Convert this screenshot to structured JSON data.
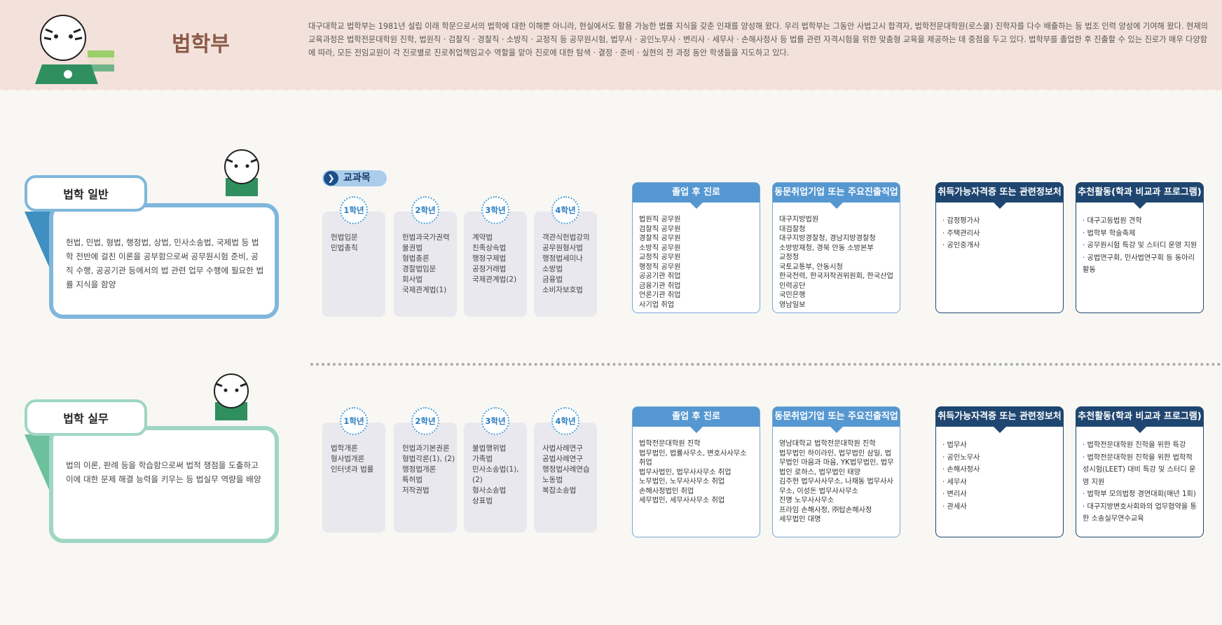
{
  "header": {
    "title": "법학부",
    "intro": "대구대학교 법학부는 1981년 설립 이래 학문으로서의 법학에 대한 이해뿐 아니라, 현실에서도 활용 가능한 법률 지식을 갖춘 인재를 양성해 왔다. 우리 법학부는 그동안 사법고시 합격자, 법학전문대학원(로스쿨) 진학자를 다수 배출하는 등 법조 인력 양성에 기여해 왔다. 현재의 교육과정은 법학전문대학원 진학, 법원직 · 검찰직 · 경찰직 · 소방직 · 교정직 등 공무원시험, 법무사 · 공인노무사 · 변리사 · 세무사 · 손해사정사 등 법률 관련 자격시험을 위한 맞춤형 교육을 제공하는 데 중점을 두고 있다. 법학부를 졸업한 후 진출할 수 있는 진로가 매우 다양함에 따라, 모든 전임교원이 각 진로별로 진로취업책임교수 역할을 맡아 진로에 대한 탐색 · 결정 · 준비 · 실현의 전 과정 동안 학생들을 지도하고 있다."
  },
  "curriculum_label": "교과목",
  "card_titles": [
    "졸업 후 진로",
    "동문취업기업 또는 주요진출직업",
    "취득가능자격증 또는 관련정보처",
    "추천활동(학과 비교과 프로그램)"
  ],
  "colors": {
    "light_header": "#5597d1",
    "dark_header": "#1f4670",
    "general_border": "#7fb7dc",
    "practice_border": "#9fd6c4"
  },
  "tracks": [
    {
      "name": "법학 일반",
      "description": "헌법, 민법, 형법, 행정법, 상법, 민사소송법, 국제법 등 법학 전반에 걸친 이론을 공부함으로써 공무원시험 준비, 공직 수행, 공공기관 등에서의 법 관련 업무 수행에 필요한 법률 지식을 함양",
      "years": [
        {
          "label": "1학년",
          "courses": [
            "헌법입문",
            "민법총칙"
          ]
        },
        {
          "label": "2학년",
          "courses": [
            "헌법과국가권력",
            "물권법",
            "형법총론",
            "경찰법입문",
            "회사법",
            "국제관계법(1)"
          ]
        },
        {
          "label": "3학년",
          "courses": [
            "계약법",
            "친족상속법",
            "행정구제법",
            "공정거래법",
            "국제관계법(2)"
          ]
        },
        {
          "label": "4학년",
          "courses": [
            "객관식헌법강의",
            "공무원형사법",
            "행정법세미나",
            "소방법",
            "금융법",
            "소비자보호법"
          ]
        }
      ],
      "careers": [
        "법원직 공무원",
        "검찰직 공무원",
        "경찰직 공무원",
        "소방직 공무원",
        "교정직 공무원",
        "행정직 공무원",
        "공공기관 취업",
        "금융기관 취업",
        "언론기관 취업",
        "사기업 취업"
      ],
      "employers": [
        "대구지방법원",
        "대검찰청",
        "대구지방경찰청, 경남지방경찰청",
        "소방방재청, 경북 안동 소방본부",
        "교정청",
        "국토교통부, 안동시청",
        "한국전력, 한국저작권위원회, 한국산업인력공단",
        "국민은행",
        "영남일보"
      ],
      "certificates": [
        "· 감정평가사",
        "· 주택관리사",
        "· 공인중개사"
      ],
      "activities": [
        "· 대구고등법원 견학",
        "· 법학부 학술축제",
        "· 공무원시험 특강 및 스터디 운영 지원",
        "· 공법연구회, 민사법연구회 등 동아리 활동"
      ]
    },
    {
      "name": "법학 실무",
      "description": "법의 이론, 판례 등을 학습함으로써 법적 쟁점을 도출하고 이에 대한 문제 해결 능력을 키우는 등 법실무 역량을 배양",
      "years": [
        {
          "label": "1학년",
          "courses": [
            "법학개론",
            "형사법개론",
            "인터넷과 법률"
          ]
        },
        {
          "label": "2학년",
          "courses": [
            "헌법과기본권론",
            "형법각론(1), (2)",
            "행정법개론",
            "특허법",
            "저작권법"
          ]
        },
        {
          "label": "3학년",
          "courses": [
            "불법행위법",
            "가족법",
            "민사소송법(1), (2)",
            "형사소송법",
            "상표법"
          ]
        },
        {
          "label": "4학년",
          "courses": [
            "사법사례연구",
            "공법사례연구",
            "행정법사례연습",
            "노동법",
            "복잡소송법"
          ]
        }
      ],
      "careers": [
        "법학전문대학원 진학",
        "법무법인, 법률사무소, 변호사사무소 취업",
        "법무사법인, 법무사사무소 취업",
        "노무법인, 노무사사무소 취업",
        "손해사정법인 취업",
        "세무법인, 세무사사무소 취업"
      ],
      "employers": [
        "영남대학교 법학전문대학원 진학",
        "법무법인 하이라인, 법무법인 삼일, 법무법인 마음과 마음, YK법무법인, 법무법인 로하스, 법무법인 태양",
        "김주현 법무사사무소, 나채동 법무사사무소, 이성돈 법무사사무소",
        "진명 노무사사무소",
        "프라임 손해사정, ㈜탑손해사정",
        "세무법인 대명"
      ],
      "certificates": [
        "· 법무사",
        "· 공인노무사",
        "· 손해사정사",
        "· 세무사",
        "· 변리사",
        "· 관세사"
      ],
      "activities": [
        "· 법학전문대학원 진학을 위한 특강",
        "· 법학전문대학원 진학을 위한 법학적성시험(LEET) 대비 특강 및 스터디 운영 지원",
        "· 법학부 모의법정 경연대회(매년 1회)",
        "· 대구지방변호사회와의 업무협약을 통한 소송실무연수교육"
      ]
    }
  ]
}
